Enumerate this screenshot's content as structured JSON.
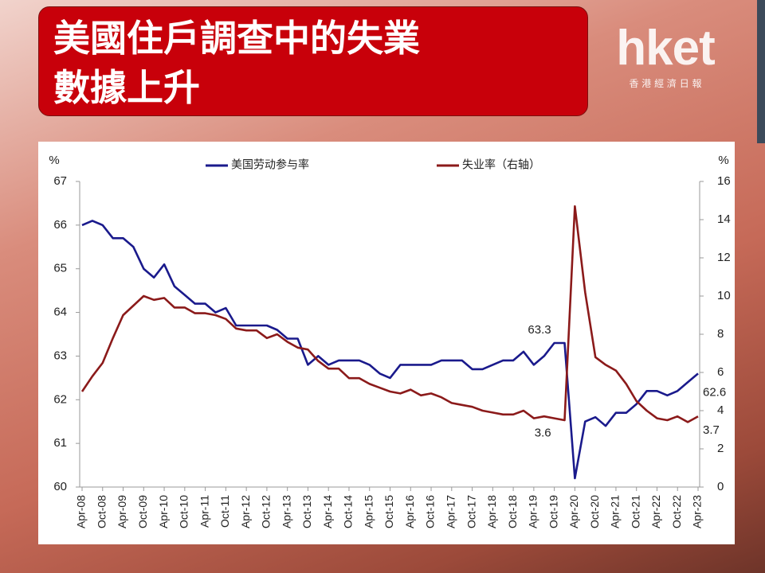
{
  "header": {
    "title_lines": [
      "美國住戶調查中的失業",
      "數據上升"
    ]
  },
  "logo": {
    "name": "hket",
    "subtitle": "香 港 經 濟 日 報"
  },
  "chart_data": {
    "type": "line",
    "ylabel": "%",
    "y2label": "%",
    "categories": [
      "Apr-08",
      null,
      "Oct-08",
      null,
      "Apr-09",
      null,
      "Oct-09",
      null,
      "Apr-10",
      null,
      "Oct-10",
      null,
      "Apr-11",
      null,
      "Oct-11",
      null,
      "Apr-12",
      null,
      "Oct-12",
      null,
      "Apr-13",
      null,
      "Oct-13",
      null,
      "Apr-14",
      null,
      "Oct-14",
      null,
      "Apr-15",
      null,
      "Oct-15",
      null,
      "Apr-16",
      null,
      "Oct-16",
      null,
      "Apr-17",
      null,
      "Oct-17",
      null,
      "Apr-18",
      null,
      "Oct-18",
      null,
      "Apr-19",
      null,
      "Oct-19",
      null,
      "Apr-20",
      null,
      "Oct-20",
      null,
      "Apr-21",
      null,
      "Oct-21",
      null,
      "Apr-22",
      null,
      "Oct-22",
      null,
      "Apr-23"
    ],
    "series": [
      {
        "name": "美国劳动参与率",
        "color": "#1a1a8c",
        "values": [
          66.0,
          66.1,
          66.0,
          65.7,
          65.7,
          65.5,
          65.0,
          64.8,
          65.1,
          64.6,
          64.4,
          64.2,
          64.2,
          64.0,
          64.1,
          63.7,
          63.7,
          63.7,
          63.7,
          63.6,
          63.4,
          63.4,
          62.8,
          63.0,
          62.8,
          62.9,
          62.9,
          62.9,
          62.8,
          62.6,
          62.5,
          62.8,
          62.8,
          62.8,
          62.8,
          62.9,
          62.9,
          62.9,
          62.7,
          62.7,
          62.8,
          62.9,
          62.9,
          63.1,
          62.8,
          63.0,
          63.3,
          63.3,
          60.2,
          61.5,
          61.6,
          61.4,
          61.7,
          61.7,
          61.9,
          62.2,
          62.2,
          62.1,
          62.2,
          62.4,
          62.6
        ],
        "value_labels": [
          null,
          null,
          null,
          null,
          null,
          null,
          null,
          null,
          null,
          null,
          null,
          null,
          null,
          null,
          null,
          null,
          null,
          null,
          null,
          null,
          null,
          null,
          null,
          null,
          null,
          null,
          null,
          null,
          null,
          null,
          null,
          null,
          null,
          null,
          null,
          null,
          null,
          null,
          null,
          null,
          null,
          null,
          null,
          null,
          null,
          null,
          "63.3",
          null,
          null,
          null,
          null,
          null,
          null,
          null,
          null,
          null,
          null,
          null,
          null,
          null,
          "62.6"
        ]
      },
      {
        "name": "失业率（右轴）",
        "color": "#8b1a1a",
        "axis": "y2",
        "values": [
          5.0,
          5.8,
          6.5,
          7.8,
          9.0,
          9.5,
          10.0,
          9.8,
          9.9,
          9.4,
          9.4,
          9.1,
          9.1,
          9.0,
          8.8,
          8.3,
          8.2,
          8.2,
          7.8,
          8.0,
          7.6,
          7.3,
          7.2,
          6.6,
          6.2,
          6.2,
          5.7,
          5.7,
          5.4,
          5.2,
          5.0,
          4.9,
          5.1,
          4.8,
          4.9,
          4.7,
          4.4,
          4.3,
          4.2,
          4.0,
          3.9,
          3.8,
          3.8,
          4.0,
          3.6,
          3.7,
          3.6,
          3.5,
          14.7,
          10.2,
          6.8,
          6.4,
          6.1,
          5.4,
          4.5,
          4.0,
          3.6,
          3.5,
          3.7,
          3.4,
          3.7
        ],
        "value_labels": [
          null,
          null,
          null,
          null,
          null,
          null,
          null,
          null,
          null,
          null,
          null,
          null,
          null,
          null,
          null,
          null,
          null,
          null,
          null,
          null,
          null,
          null,
          null,
          null,
          null,
          null,
          null,
          null,
          null,
          null,
          null,
          null,
          null,
          null,
          null,
          null,
          null,
          null,
          null,
          null,
          null,
          null,
          null,
          null,
          null,
          null,
          "3.6",
          null,
          null,
          null,
          null,
          null,
          null,
          null,
          null,
          null,
          null,
          null,
          null,
          null,
          "3.7"
        ]
      }
    ],
    "ylim": [
      60,
      67
    ],
    "yticks": [
      60,
      61,
      62,
      63,
      64,
      65,
      66,
      67
    ],
    "y2lim": [
      0,
      16
    ],
    "y2ticks": [
      0,
      2,
      4,
      6,
      8,
      10,
      12,
      14,
      16
    ],
    "grid": false,
    "legend": "top"
  }
}
